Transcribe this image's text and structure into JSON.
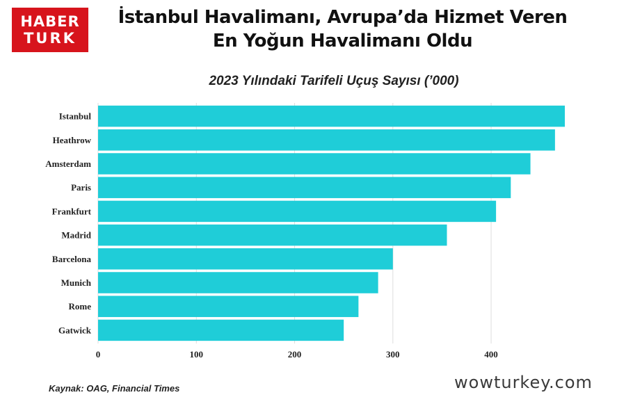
{
  "logo": {
    "line1": "HABER",
    "line2": "TURK",
    "color": "#d7141c"
  },
  "header": {
    "title_line1": "İstanbul Havalimanı, Avrupa’da Hizmet Veren",
    "title_line2": "En Yoğun Havalimanı Oldu"
  },
  "footer": {
    "source": "Kaynak: OAG, Financial Times",
    "watermark": "wowturkey.com"
  },
  "chart_data": {
    "type": "bar",
    "orientation": "horizontal",
    "title": "2023 Yılındaki Tarifeli Uçuş Sayısı (’000)",
    "categories": [
      "Istanbul",
      "Heathrow",
      "Amsterdam",
      "Paris",
      "Frankfurt",
      "Madrid",
      "Barcelona",
      "Munich",
      "Rome",
      "Gatwick"
    ],
    "values": [
      475,
      465,
      440,
      420,
      405,
      355,
      300,
      285,
      265,
      250
    ],
    "xticks": [
      0,
      100,
      200,
      300,
      400
    ],
    "xlim": [
      0,
      475
    ],
    "grid": true,
    "bar_color": "#1fcdd8"
  }
}
